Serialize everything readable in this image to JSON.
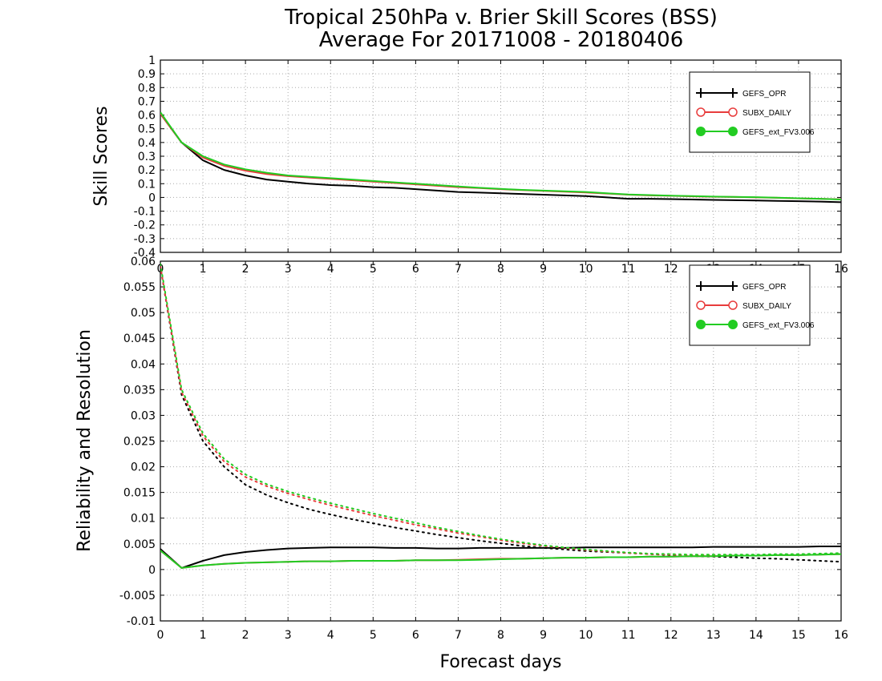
{
  "title": {
    "line1": "Tropical 250hPa v. Brier Skill Scores (BSS)",
    "line2": "Average For 20171008 - 20180406"
  },
  "colors": {
    "GEFS_OPR": "#000000",
    "SUBX_DAILY": "#e83c3c",
    "GEFS_ext_FV3.006": "#22cc22"
  },
  "chart_data": [
    {
      "type": "line",
      "ylabel": "Skill Scores",
      "xlabel": "",
      "xlim": [
        0,
        16
      ],
      "ylim": [
        -0.4,
        1
      ],
      "xticks": [
        0,
        1,
        2,
        3,
        4,
        5,
        6,
        7,
        8,
        9,
        10,
        11,
        12,
        13,
        14,
        15,
        16
      ],
      "yticks": [
        -0.4,
        -0.3,
        -0.2,
        -0.1,
        0,
        0.1,
        0.2,
        0.3,
        0.4,
        0.5,
        0.6,
        0.7,
        0.8,
        0.9,
        1
      ],
      "ytick_labels": [
        "-0.4",
        "-0.3",
        "-0.2",
        "-0.1",
        "0",
        "0.1",
        "0.2",
        "0.3",
        "0.4",
        "0.5",
        "0.6",
        "0.7",
        "0.8",
        "0.9",
        "1"
      ],
      "grid": true,
      "legend_position": "top-right",
      "x": [
        0,
        0.5,
        1,
        1.5,
        2,
        2.5,
        3,
        3.5,
        4,
        4.5,
        5,
        5.5,
        6,
        6.5,
        7,
        7.5,
        8,
        8.5,
        9,
        9.5,
        10,
        10.5,
        11,
        11.5,
        12,
        12.5,
        13,
        13.5,
        14,
        14.5,
        15,
        15.5,
        16
      ],
      "series": [
        {
          "name": "GEFS_OPR",
          "style": "solid",
          "marker": "plus",
          "values": [
            0.61,
            0.4,
            0.27,
            0.2,
            0.16,
            0.13,
            0.115,
            0.1,
            0.09,
            0.085,
            0.075,
            0.07,
            0.06,
            0.05,
            0.04,
            0.035,
            0.03,
            0.025,
            0.02,
            0.015,
            0.01,
            0.0,
            -0.01,
            -0.01,
            -0.012,
            -0.015,
            -0.018,
            -0.02,
            -0.022,
            -0.025,
            -0.027,
            -0.03,
            -0.035
          ]
        },
        {
          "name": "SUBX_DAILY",
          "style": "solid",
          "marker": "open-circle",
          "values": [
            0.61,
            0.4,
            0.29,
            0.23,
            0.195,
            0.17,
            0.155,
            0.145,
            0.135,
            0.125,
            0.115,
            0.105,
            0.095,
            0.085,
            0.075,
            0.068,
            0.06,
            0.053,
            0.048,
            0.042,
            0.036,
            0.028,
            0.02,
            0.015,
            0.012,
            0.008,
            0.005,
            0.003,
            0.0,
            -0.003,
            -0.007,
            -0.01,
            -0.013
          ]
        },
        {
          "name": "GEFS_ext_FV3.006",
          "style": "solid",
          "marker": "filled-circle",
          "values": [
            0.62,
            0.4,
            0.3,
            0.24,
            0.205,
            0.18,
            0.16,
            0.15,
            0.14,
            0.13,
            0.12,
            0.11,
            0.1,
            0.09,
            0.08,
            0.07,
            0.062,
            0.055,
            0.05,
            0.045,
            0.04,
            0.03,
            0.022,
            0.017,
            0.013,
            0.01,
            0.006,
            0.004,
            0.002,
            -0.002,
            -0.006,
            -0.01,
            -0.015
          ]
        }
      ]
    },
    {
      "type": "line",
      "ylabel": "Reliability and Resolution",
      "xlabel": "Forecast days",
      "xlim": [
        0,
        16
      ],
      "ylim": [
        -0.01,
        0.06
      ],
      "xticks": [
        0,
        1,
        2,
        3,
        4,
        5,
        6,
        7,
        8,
        9,
        10,
        11,
        12,
        13,
        14,
        15,
        16
      ],
      "yticks": [
        -0.01,
        -0.005,
        0,
        0.005,
        0.01,
        0.015,
        0.02,
        0.025,
        0.03,
        0.035,
        0.04,
        0.045,
        0.05,
        0.055,
        0.06
      ],
      "ytick_labels": [
        "-0.01",
        "-0.005",
        "0",
        "0.005",
        "0.01",
        "0.015",
        "0.02",
        "0.025",
        "0.03",
        "0.035",
        "0.04",
        "0.045",
        "0.05",
        "0.055",
        "0.06"
      ],
      "grid": true,
      "legend_position": "top-right",
      "x": [
        0,
        0.5,
        1,
        1.5,
        2,
        2.5,
        3,
        3.5,
        4,
        4.5,
        5,
        5.5,
        6,
        6.5,
        7,
        7.5,
        8,
        8.5,
        9,
        9.5,
        10,
        10.5,
        11,
        11.5,
        12,
        12.5,
        13,
        13.5,
        14,
        14.5,
        15,
        15.5,
        16
      ],
      "series": [
        {
          "name": "GEFS_OPR",
          "style": "solid",
          "marker": "plus",
          "values": [
            0.004,
            0.0003,
            0.0017,
            0.0028,
            0.0034,
            0.0038,
            0.0041,
            0.0042,
            0.0043,
            0.0043,
            0.0043,
            0.0042,
            0.0042,
            0.0041,
            0.0041,
            0.0042,
            0.0042,
            0.0042,
            0.0042,
            0.0042,
            0.0043,
            0.0043,
            0.0043,
            0.0043,
            0.0043,
            0.0043,
            0.0044,
            0.0044,
            0.0044,
            0.0044,
            0.0044,
            0.0045,
            0.0045
          ]
        },
        {
          "name": "GEFS_OPR",
          "style": "dotted",
          "marker": "none",
          "values": [
            0.059,
            0.034,
            0.025,
            0.02,
            0.0165,
            0.0145,
            0.013,
            0.0117,
            0.0107,
            0.0098,
            0.009,
            0.0082,
            0.0075,
            0.0068,
            0.0062,
            0.0056,
            0.0051,
            0.0046,
            0.0042,
            0.0039,
            0.0036,
            0.0034,
            0.0032,
            0.003,
            0.0028,
            0.0026,
            0.0025,
            0.0024,
            0.0022,
            0.0021,
            0.0019,
            0.0017,
            0.0015
          ]
        },
        {
          "name": "SUBX_DAILY",
          "style": "solid",
          "marker": "open-circle",
          "values": [
            0.0037,
            0.0003,
            0.0008,
            0.0011,
            0.0013,
            0.0014,
            0.0015,
            0.0016,
            0.0016,
            0.0017,
            0.0017,
            0.0017,
            0.0018,
            0.0018,
            0.0019,
            0.002,
            0.0021,
            0.0021,
            0.0022,
            0.0023,
            0.0023,
            0.0024,
            0.0024,
            0.0025,
            0.0025,
            0.0026,
            0.0026,
            0.0027,
            0.0027,
            0.0028,
            0.0028,
            0.0029,
            0.003
          ]
        },
        {
          "name": "SUBX_DAILY",
          "style": "dotted",
          "marker": "none",
          "values": [
            0.059,
            0.0345,
            0.026,
            0.021,
            0.018,
            0.0162,
            0.0148,
            0.0136,
            0.0125,
            0.0115,
            0.0105,
            0.0096,
            0.0087,
            0.0079,
            0.0071,
            0.0064,
            0.0057,
            0.0051,
            0.0046,
            0.0042,
            0.0038,
            0.0035,
            0.0032,
            0.003,
            0.0029,
            0.0028,
            0.0028,
            0.0028,
            0.0028,
            0.0029,
            0.0029,
            0.003,
            0.0031
          ]
        },
        {
          "name": "GEFS_ext_FV3.006",
          "style": "solid",
          "marker": "filled-circle",
          "values": [
            0.0037,
            0.0003,
            0.0008,
            0.0011,
            0.0013,
            0.0014,
            0.0015,
            0.0016,
            0.0016,
            0.0017,
            0.0017,
            0.0017,
            0.0018,
            0.0018,
            0.0018,
            0.0019,
            0.002,
            0.0021,
            0.0022,
            0.0023,
            0.0023,
            0.0024,
            0.0024,
            0.0025,
            0.0025,
            0.0026,
            0.0026,
            0.0027,
            0.0027,
            0.0028,
            0.0028,
            0.0029,
            0.003
          ]
        },
        {
          "name": "GEFS_ext_FV3.006",
          "style": "dotted",
          "marker": "none",
          "values": [
            0.0595,
            0.035,
            0.0265,
            0.0215,
            0.0185,
            0.0166,
            0.0152,
            0.014,
            0.0129,
            0.0119,
            0.0109,
            0.01,
            0.0091,
            0.0082,
            0.0074,
            0.0066,
            0.0059,
            0.0053,
            0.0047,
            0.0043,
            0.0039,
            0.0036,
            0.0033,
            0.0031,
            0.003,
            0.0029,
            0.0029,
            0.0029,
            0.0029,
            0.003,
            0.003,
            0.0031,
            0.0032
          ]
        }
      ]
    }
  ],
  "legend": {
    "entries": [
      {
        "label": "GEFS_OPR",
        "marker": "plus"
      },
      {
        "label": "SUBX_DAILY",
        "marker": "open-circle"
      },
      {
        "label": "GEFS_ext_FV3.006",
        "marker": "filled-circle"
      }
    ]
  }
}
